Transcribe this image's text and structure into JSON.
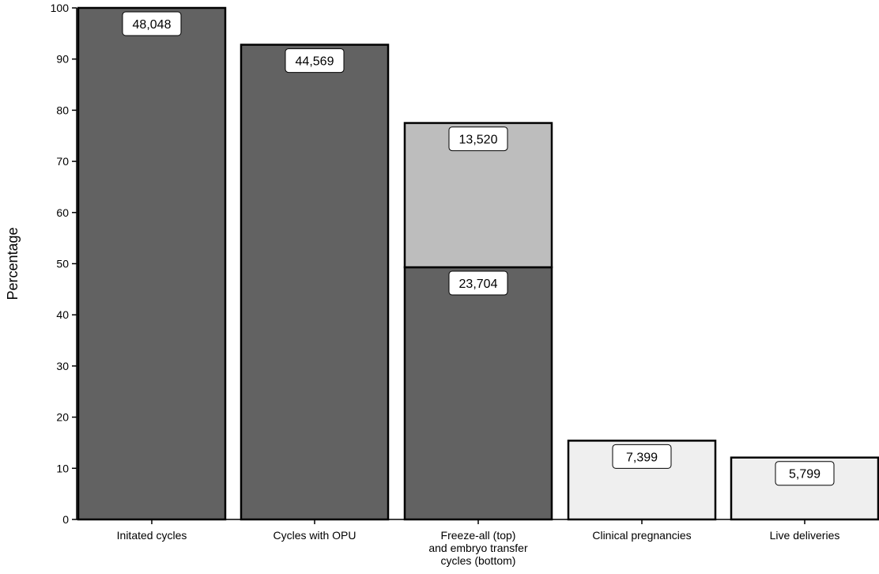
{
  "chart_data": {
    "type": "bar",
    "stacked": true,
    "title": "",
    "xlabel": "",
    "ylabel": "Percentage",
    "ylim": [
      0,
      100
    ],
    "yticks": [
      0,
      10,
      20,
      30,
      40,
      50,
      60,
      70,
      80,
      90,
      100
    ],
    "grid": false,
    "categories": [
      [
        "Initated cycles"
      ],
      [
        "Cycles with OPU"
      ],
      [
        "Freeze-all (top)",
        "and embryo transfer",
        "cycles (bottom)"
      ],
      [
        "Clinical pregnancies"
      ],
      [
        "Live deliveries"
      ]
    ],
    "colors": {
      "dark": "#626262",
      "mid": "#bdbdbd",
      "light": "#efefef",
      "outline": "#000000"
    },
    "bars": [
      {
        "segments": [
          {
            "value": 100.0,
            "label": "48,048",
            "color": "dark"
          }
        ]
      },
      {
        "segments": [
          {
            "value": 92.8,
            "label": "44,569",
            "color": "dark"
          }
        ]
      },
      {
        "segments": [
          {
            "value": 49.3,
            "label": "23,704",
            "color": "dark"
          },
          {
            "value": 28.2,
            "label": "13,520",
            "color": "mid"
          }
        ]
      },
      {
        "segments": [
          {
            "value": 15.4,
            "label": "7,399",
            "color": "light"
          }
        ]
      },
      {
        "segments": [
          {
            "value": 12.1,
            "label": "5,799",
            "color": "light"
          }
        ]
      }
    ]
  }
}
